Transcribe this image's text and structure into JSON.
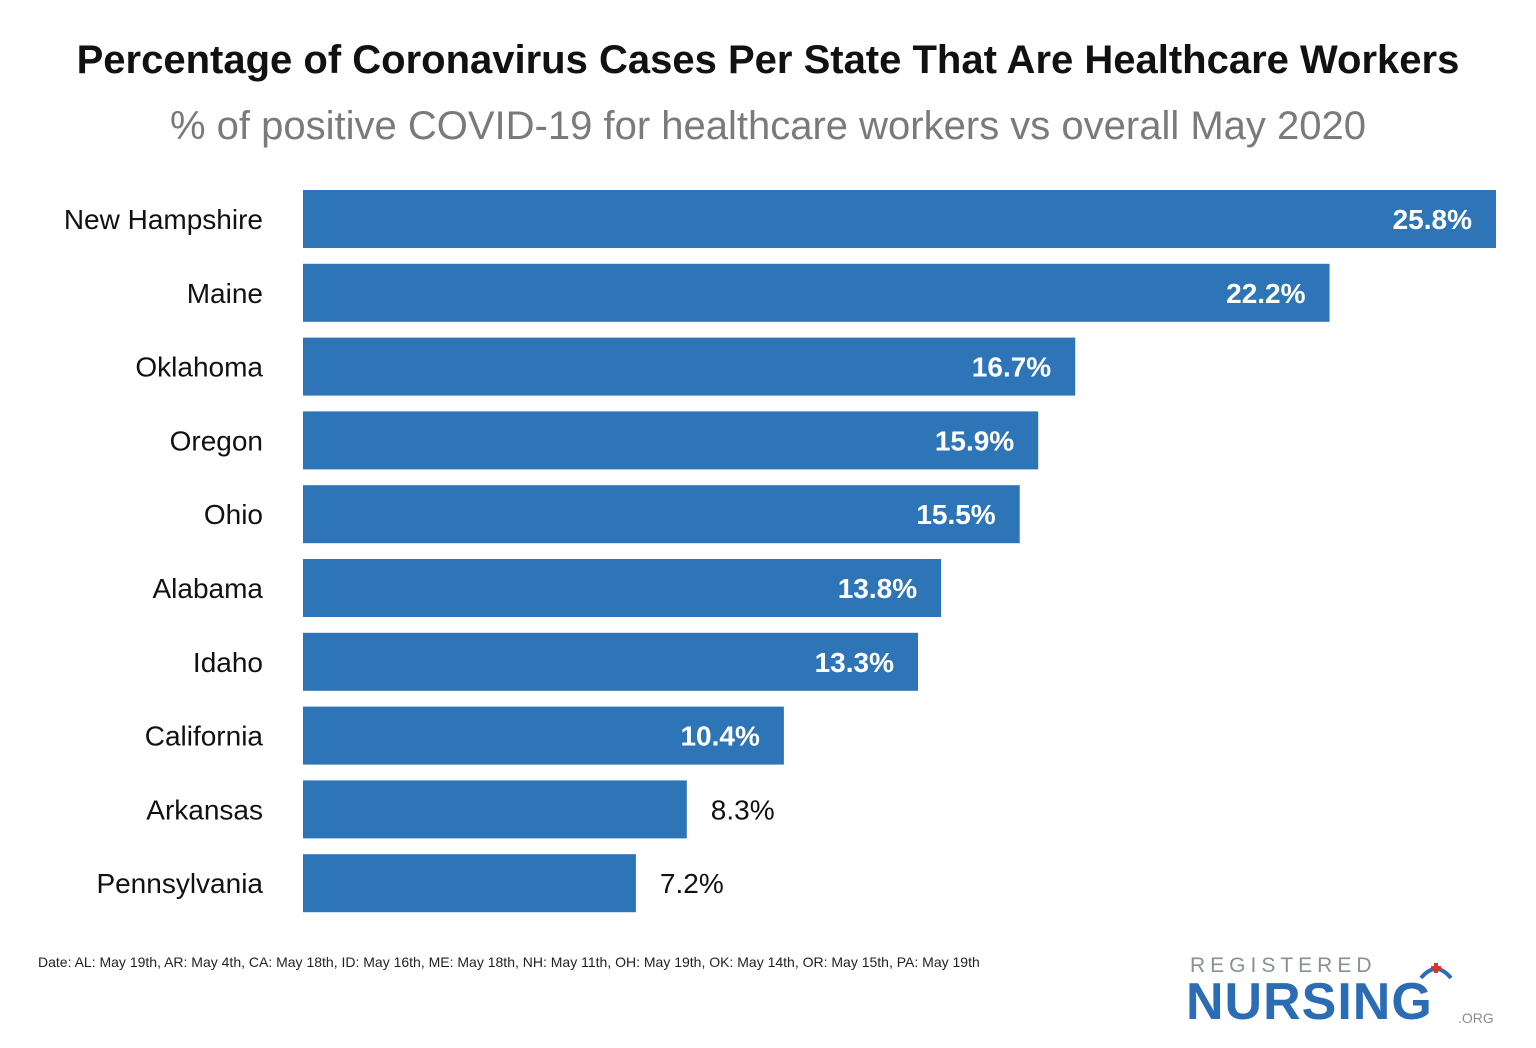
{
  "chart_data": {
    "type": "bar",
    "orientation": "horizontal",
    "title": "Percentage of Coronavirus Cases Per State That Are Healthcare Workers",
    "subtitle": "% of positive COVID-19 for healthcare workers vs overall May 2020",
    "categories": [
      "New Hampshire",
      "Maine",
      "Oklahoma",
      "Oregon",
      "Ohio",
      "Alabama",
      "Idaho",
      "California",
      "Arkansas",
      "Pennsylvania"
    ],
    "values": [
      25.8,
      22.2,
      16.7,
      15.9,
      15.5,
      13.8,
      13.3,
      10.4,
      8.3,
      7.2
    ],
    "value_labels": [
      "25.8%",
      "22.2%",
      "16.7%",
      "15.9%",
      "15.5%",
      "13.8%",
      "13.3%",
      "10.4%",
      "8.3%",
      "7.2%"
    ],
    "xlim": [
      0,
      25.8
    ],
    "grid": false,
    "bar_color": "#2e75b8",
    "footnote": "Date: AL: May 19th, AR: May 4th, CA: May 18th, ID: May 16th, ME: May 18th, NH: May 11th, OH: May 19th, OK: May 14th, OR: May 15th, PA: May 19th"
  },
  "logo": {
    "top": "REGISTERED",
    "main": "NURSING",
    "suffix": ".ORG"
  }
}
